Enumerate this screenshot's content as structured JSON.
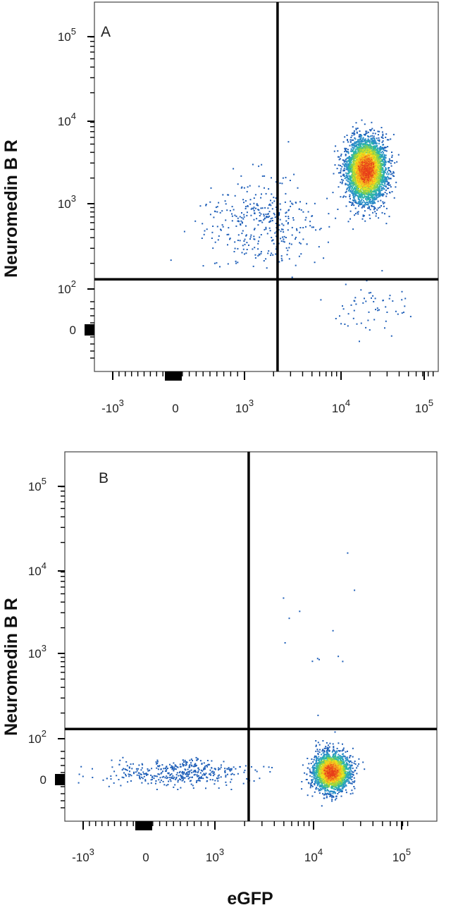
{
  "chart_data": [
    {
      "type": "scatter",
      "panel_label": "A",
      "ylabel": "Neuromedin B R",
      "xlabel": "",
      "x_scale": "biexponential",
      "y_scale": "biexponential",
      "x_ticks": [
        {
          "value": -1000,
          "base": "-10",
          "exp": "3"
        },
        {
          "value": 0,
          "base": "0",
          "exp": ""
        },
        {
          "value": 1000,
          "base": "10",
          "exp": "3"
        },
        {
          "value": 10000,
          "base": "10",
          "exp": "4"
        },
        {
          "value": 100000,
          "base": "10",
          "exp": "5"
        }
      ],
      "y_ticks": [
        {
          "value": 0,
          "base": "0",
          "exp": ""
        },
        {
          "value": 100,
          "base": "10",
          "exp": "2"
        },
        {
          "value": 1000,
          "base": "10",
          "exp": "3"
        },
        {
          "value": 10000,
          "base": "10",
          "exp": "4"
        },
        {
          "value": 100000,
          "base": "10",
          "exp": "5"
        }
      ],
      "quadrant_gate": {
        "x": 2200,
        "y": 130
      },
      "populations": [
        {
          "name": "main",
          "x_center": 18000,
          "y_center": 2500,
          "count": 4200,
          "spread_x": 0.1,
          "spread_y": 0.18
        },
        {
          "name": "trail",
          "x_center": 1500,
          "y_center": 600,
          "count": 380,
          "spread_x": 0.3,
          "spread_y": 0.25
        },
        {
          "name": "low",
          "x_center": 20000,
          "y_center": 60,
          "count": 60,
          "spread_x": 0.2,
          "spread_y": 0.15
        }
      ],
      "grid": false,
      "colors": {
        "low": "#1f5fb8",
        "mid": "#2cb5a8",
        "high": "#f2e21b",
        "peak": "#e83f1a"
      }
    },
    {
      "type": "scatter",
      "panel_label": "B",
      "ylabel": "Neuromedin B R",
      "xlabel": "eGFP",
      "x_scale": "biexponential",
      "y_scale": "biexponential",
      "x_ticks": [
        {
          "value": -1000,
          "base": "-10",
          "exp": "3"
        },
        {
          "value": 0,
          "base": "0",
          "exp": ""
        },
        {
          "value": 1000,
          "base": "10",
          "exp": "3"
        },
        {
          "value": 10000,
          "base": "10",
          "exp": "4"
        },
        {
          "value": 100000,
          "base": "10",
          "exp": "5"
        }
      ],
      "y_ticks": [
        {
          "value": 0,
          "base": "0",
          "exp": ""
        },
        {
          "value": 100,
          "base": "10",
          "exp": "2"
        },
        {
          "value": 1000,
          "base": "10",
          "exp": "3"
        },
        {
          "value": 10000,
          "base": "10",
          "exp": "4"
        },
        {
          "value": 100000,
          "base": "10",
          "exp": "5"
        }
      ],
      "quadrant_gate": {
        "x": 2200,
        "y": 130
      },
      "populations": [
        {
          "name": "main",
          "x_center": 15000,
          "y_center": 20,
          "count": 2600,
          "spread_x": 0.09,
          "spread_y": 0.11
        },
        {
          "name": "negative",
          "x_center": 500,
          "y_center": 20,
          "count": 420,
          "spread_x": 0.35,
          "spread_y": 0.08
        },
        {
          "name": "sparse-high",
          "x_center": 12000,
          "y_center": 1500,
          "count": 14,
          "spread_x": 0.2,
          "spread_y": 0.6
        }
      ],
      "grid": false,
      "colors": {
        "low": "#1f5fb8",
        "mid": "#2cb5a8",
        "high": "#f2e21b",
        "peak": "#e83f1a"
      }
    }
  ]
}
